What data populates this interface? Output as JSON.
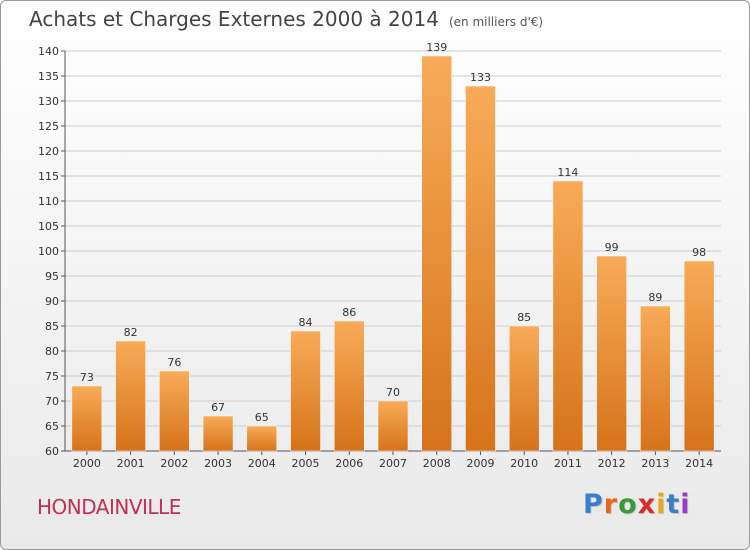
{
  "header": {
    "title": "Achats et Charges Externes 2000 à 2014",
    "unit": "(en milliers d'€)"
  },
  "footer": {
    "commune": "HONDAINVILLE",
    "logo_text": "Proxiti"
  },
  "colors": {
    "bar_light": "#f6a650",
    "bar_dark": "#d9761d",
    "grid": "#cccccc",
    "commune": "#c0305a"
  },
  "chart_data": {
    "type": "bar",
    "title": "Achats et Charges Externes 2000 à 2014",
    "subtitle": "(en milliers d'€)",
    "xlabel": "",
    "ylabel": "",
    "categories": [
      "2000",
      "2001",
      "2002",
      "2003",
      "2004",
      "2005",
      "2006",
      "2007",
      "2008",
      "2009",
      "2010",
      "2011",
      "2012",
      "2013",
      "2014"
    ],
    "values": [
      73,
      82,
      76,
      67,
      65,
      84,
      86,
      70,
      139,
      133,
      85,
      114,
      99,
      89,
      98
    ],
    "ylim": [
      60,
      140
    ],
    "yticks": [
      60,
      65,
      70,
      75,
      80,
      85,
      90,
      95,
      100,
      105,
      110,
      115,
      120,
      125,
      130,
      135,
      140
    ],
    "grid": true,
    "legend": "none"
  }
}
